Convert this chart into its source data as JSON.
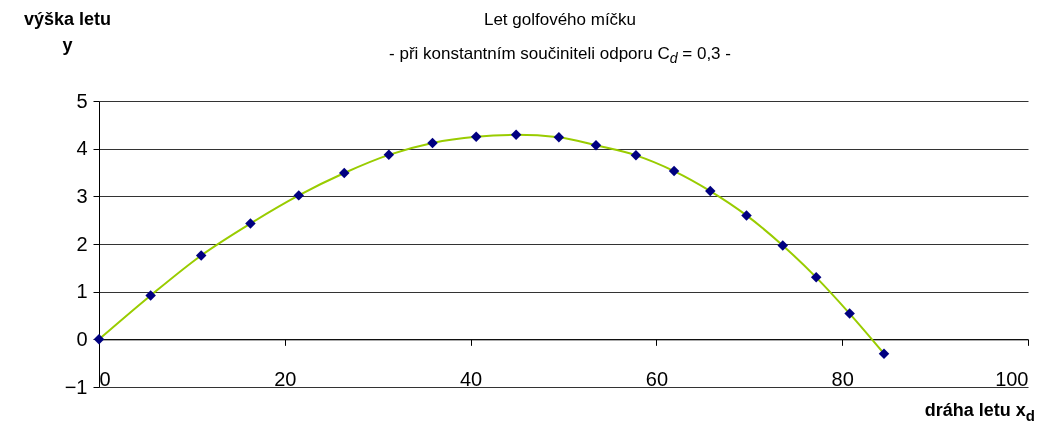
{
  "chart_data": {
    "type": "line",
    "title": "Let golfového míčku",
    "subtitle": "- při konstantním součiniteli odporu C$_{d}$ = 0,3 -",
    "xlabel": "dráha letu x$_{d}$",
    "ylabel": "výška letu\ny",
    "x": [
      0,
      5.56,
      11.0,
      16.3,
      21.5,
      26.4,
      31.2,
      35.9,
      40.6,
      44.9,
      49.5,
      53.5,
      57.8,
      61.9,
      65.8,
      69.7,
      73.6,
      77.2,
      80.8,
      84.5
    ],
    "series": [
      {
        "marker": "none",
        "color": "#99cc00",
        "values": [
          0,
          0.92,
          1.76,
          2.43,
          3.02,
          3.49,
          3.87,
          4.12,
          4.25,
          4.29,
          4.24,
          4.07,
          3.86,
          3.53,
          3.11,
          2.6,
          1.97,
          1.3,
          0.54,
          -0.3
        ]
      },
      {
        "type": "scatter",
        "color": "#000080",
        "values": [
          0,
          0.92,
          1.76,
          2.43,
          3.02,
          3.49,
          3.87,
          4.12,
          4.25,
          4.29,
          4.24,
          4.07,
          3.86,
          3.53,
          3.11,
          2.6,
          1.97,
          1.3,
          0.54,
          -0.3
        ]
      }
    ],
    "xlim": [
      0,
      100
    ],
    "xticks": [
      0,
      20,
      40,
      60,
      80,
      100
    ],
    "ylim": [
      -1,
      5
    ],
    "yticks": [
      -1,
      0,
      1,
      2,
      3,
      4,
      5
    ],
    "grid": "y",
    "marker": "diamond",
    "line_style": "solid"
  }
}
